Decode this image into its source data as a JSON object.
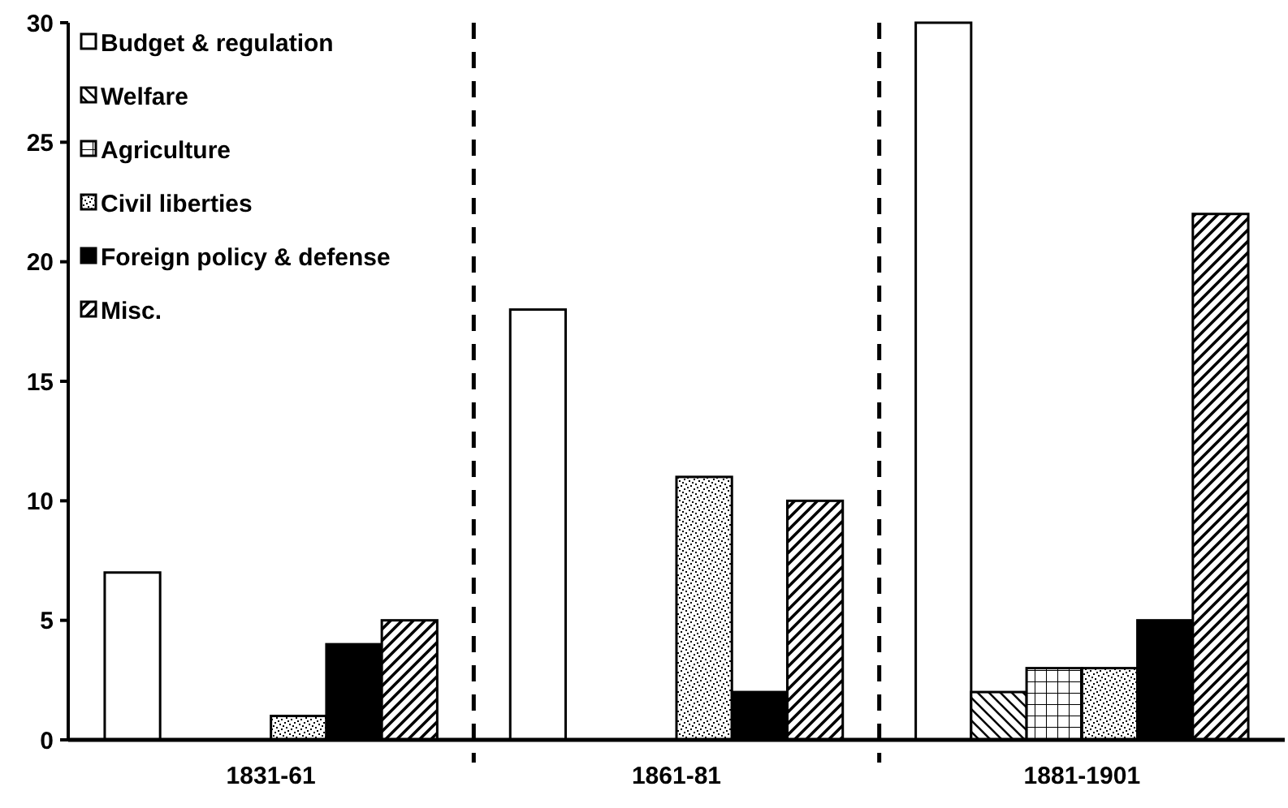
{
  "chart_data": {
    "type": "bar",
    "categories": [
      "1831-61",
      "1861-81",
      "1881-1901"
    ],
    "series": [
      {
        "name": "Budget & regulation",
        "color": "#ffffff",
        "values": [
          7,
          18,
          30
        ]
      },
      {
        "name": "Welfare",
        "color": "#000000",
        "values": [
          0,
          0,
          2
        ]
      },
      {
        "name": "Agriculture",
        "color": "#000000",
        "values": [
          0,
          0,
          3
        ]
      },
      {
        "name": "Civil liberties",
        "color": "#000000",
        "values": [
          1,
          11,
          3
        ]
      },
      {
        "name": "Foreign policy & defense",
        "color": "#000000",
        "values": [
          4,
          2,
          5
        ]
      },
      {
        "name": "Misc.",
        "color": "#000000",
        "values": [
          5,
          10,
          22
        ]
      }
    ],
    "ylim": [
      0,
      30
    ],
    "yticks": [
      0,
      5,
      10,
      15,
      20,
      25,
      30
    ],
    "grid": false,
    "legend": "top left"
  }
}
